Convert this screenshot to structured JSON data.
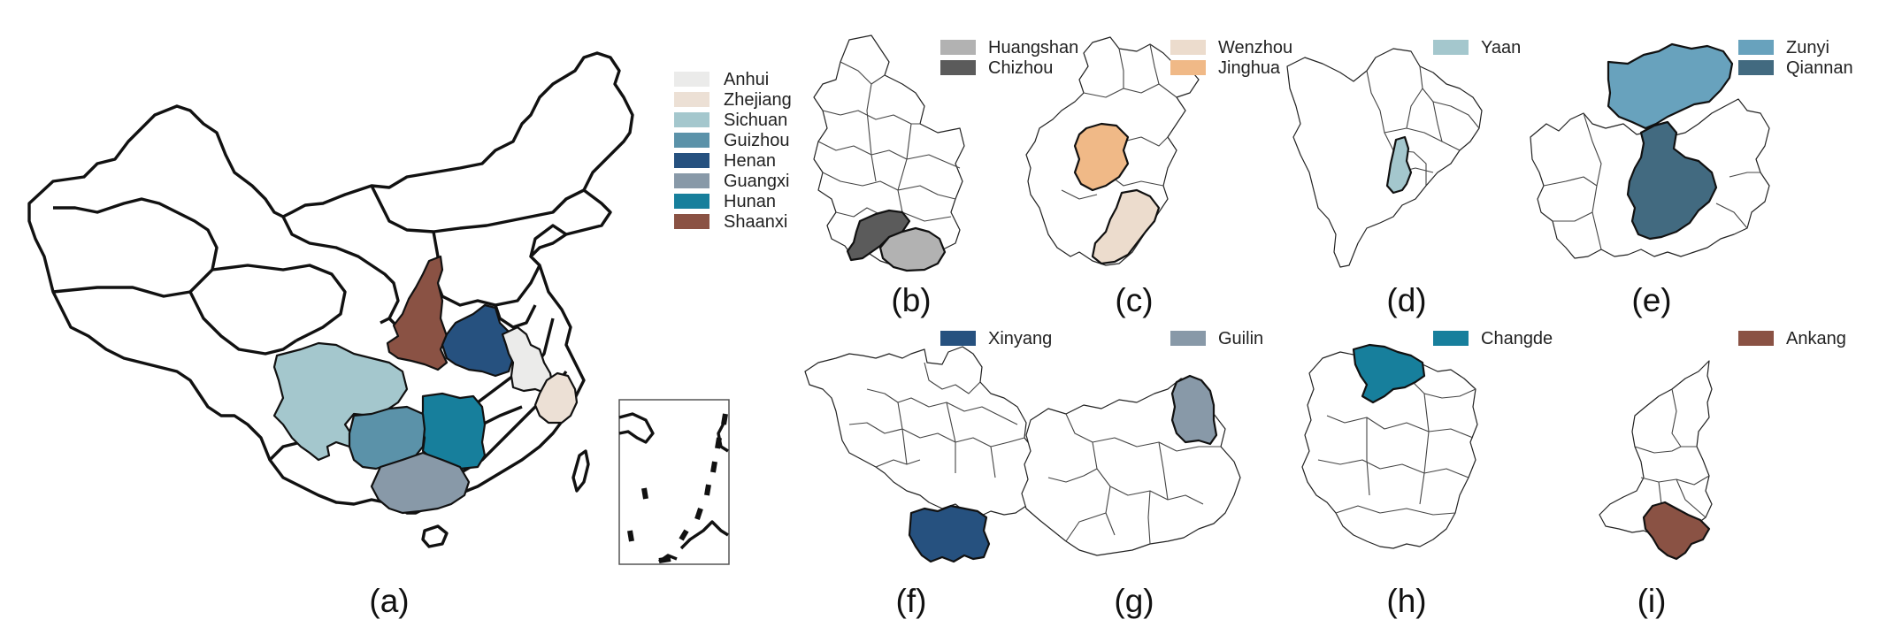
{
  "colors": {
    "Anhui": "#ebebea",
    "Zhejiang": "#ece0d5",
    "Sichuan": "#a4c7cd",
    "Guizhou": "#5b92a9",
    "Henan": "#26517f",
    "Guangxi": "#8899a8",
    "Hunan": "#177f9c",
    "Shaanxi": "#8a5244",
    "Huangshan": "#b2b2b2",
    "Chizhou": "#5b5b5b",
    "Wenzhou": "#ecdccd",
    "Jinghua": "#f0b987",
    "Yaan": "#a4c7cd",
    "Zunyi": "#68a2bd",
    "Qiannan": "#426a80",
    "Xinyang": "#26517f",
    "Guilin": "#8899a8",
    "Changde": "#177f9c",
    "Ankang": "#8a5244"
  },
  "panel_a": {
    "label": "(a)",
    "legend": [
      "Anhui",
      "Zhejiang",
      "Sichuan",
      "Guizhou",
      "Henan",
      "Guangxi",
      "Hunan",
      "Shaanxi"
    ]
  },
  "panels": [
    {
      "id": "b",
      "label": "(b)",
      "legend": [
        "Huangshan",
        "Chizhou"
      ]
    },
    {
      "id": "c",
      "label": "(c)",
      "legend": [
        "Wenzhou",
        "Jinghua"
      ]
    },
    {
      "id": "d",
      "label": "(d)",
      "legend": [
        "Yaan"
      ]
    },
    {
      "id": "e",
      "label": "(e)",
      "legend": [
        "Zunyi",
        "Qiannan"
      ]
    },
    {
      "id": "f",
      "label": "(f)",
      "legend": [
        "Xinyang"
      ]
    },
    {
      "id": "g",
      "label": "(g)",
      "legend": [
        "Guilin"
      ]
    },
    {
      "id": "h",
      "label": "(h)",
      "legend": [
        "Changde"
      ]
    },
    {
      "id": "i",
      "label": "(i)",
      "legend": [
        "Ankang"
      ]
    }
  ]
}
